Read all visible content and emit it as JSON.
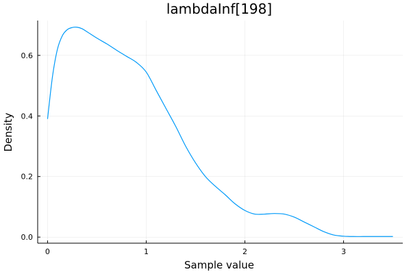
{
  "chart_data": {
    "type": "line",
    "title": "lambdaInf[198]",
    "xlabel": "Sample value",
    "ylabel": "Density",
    "xlim": [
      -0.1,
      3.6
    ],
    "ylim": [
      -0.02,
      0.715
    ],
    "xticks": [
      0,
      1,
      2,
      3
    ],
    "yticks": [
      0.0,
      0.2,
      0.4,
      0.6
    ],
    "xtick_labels": [
      "0",
      "1",
      "2",
      "3"
    ],
    "ytick_labels": [
      "0.0",
      "0.2",
      "0.4",
      "0.6"
    ],
    "grid": true,
    "legend": "none",
    "series": [
      {
        "color": "#009af9",
        "x": [
          0.0,
          0.05,
          0.1,
          0.15,
          0.2,
          0.25,
          0.3,
          0.35,
          0.4,
          0.5,
          0.6,
          0.7,
          0.8,
          0.9,
          1.0,
          1.1,
          1.2,
          1.3,
          1.4,
          1.5,
          1.6,
          1.7,
          1.8,
          1.9,
          2.0,
          2.1,
          2.2,
          2.3,
          2.4,
          2.5,
          2.6,
          2.7,
          2.8,
          2.9,
          3.0,
          3.1,
          3.2,
          3.3,
          3.4,
          3.5
        ],
        "y": [
          0.39,
          0.53,
          0.62,
          0.665,
          0.685,
          0.692,
          0.693,
          0.688,
          0.678,
          0.657,
          0.638,
          0.617,
          0.597,
          0.577,
          0.545,
          0.485,
          0.425,
          0.365,
          0.3,
          0.245,
          0.2,
          0.168,
          0.14,
          0.11,
          0.088,
          0.076,
          0.076,
          0.078,
          0.076,
          0.066,
          0.05,
          0.034,
          0.018,
          0.007,
          0.003,
          0.002,
          0.002,
          0.002,
          0.002,
          0.002
        ]
      }
    ]
  }
}
